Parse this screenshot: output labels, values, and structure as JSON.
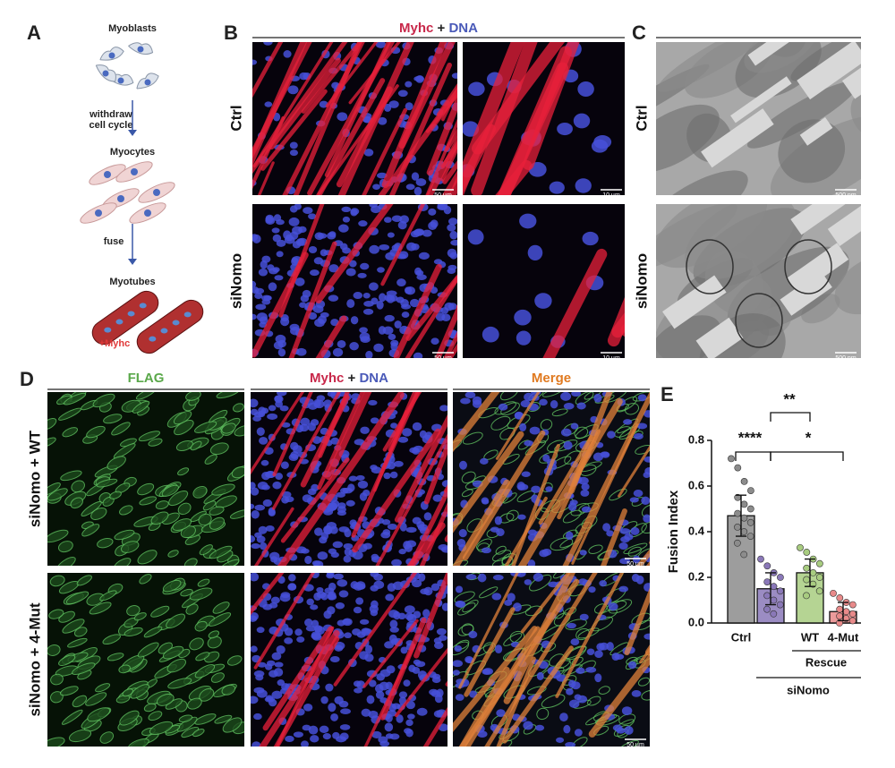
{
  "panels": {
    "A": {
      "label": "A",
      "steps": [
        "Myoblasts",
        [
          "withdraw",
          "cell cycle"
        ],
        "Myocytes",
        "fuse",
        "Myotubes"
      ],
      "marker": "+Myhc"
    },
    "B": {
      "label": "B",
      "header": [
        "Myhc",
        "+",
        "DNA"
      ],
      "rows": [
        "Ctrl",
        "siNomo"
      ],
      "scale_bars": [
        "50 µm",
        "10 µm",
        "50 µm",
        "10 µm"
      ]
    },
    "C": {
      "label": "C",
      "rows": [
        "Ctrl",
        "siNomo"
      ],
      "scale_bars": [
        "500 nm",
        "500 nm"
      ]
    },
    "D": {
      "label": "D",
      "columns": [
        [
          "FLAG"
        ],
        [
          "Myhc",
          "+",
          "DNA"
        ],
        [
          "Merge"
        ]
      ],
      "rows": [
        "siNomo + WT",
        "siNomo + 4-Mut"
      ],
      "scale_bars": [
        "50 µm",
        "50 µm"
      ]
    },
    "E": {
      "label": "E"
    }
  },
  "chart_data": {
    "type": "bar",
    "y_label": "Fusion Index",
    "categories": [
      "Ctrl",
      null,
      "WT",
      "4-Mut"
    ],
    "values": [
      0.47,
      0.15,
      0.22,
      0.05
    ],
    "errors": [
      0.09,
      0.07,
      0.06,
      0.04
    ],
    "colors": [
      "#8c8c8c",
      "#8a78b8",
      "#a8cc80",
      "#e88a8a"
    ],
    "points": [
      [
        0.72,
        0.68,
        0.62,
        0.58,
        0.55,
        0.52,
        0.5,
        0.48,
        0.46,
        0.44,
        0.42,
        0.4,
        0.38,
        0.35,
        0.3
      ],
      [
        0.28,
        0.25,
        0.22,
        0.2,
        0.18,
        0.16,
        0.14,
        0.12,
        0.1,
        0.08,
        0.06,
        0.04
      ],
      [
        0.33,
        0.31,
        0.28,
        0.26,
        0.24,
        0.22,
        0.2,
        0.19,
        0.17,
        0.14,
        0.12
      ],
      [
        0.13,
        0.11,
        0.09,
        0.08,
        0.06,
        0.05,
        0.04,
        0.03,
        0.02,
        0.01,
        0.0
      ]
    ],
    "groups": [
      "Rescue",
      "siNomo"
    ],
    "significance": [
      "****",
      "**",
      "*"
    ],
    "ylim": [
      0,
      0.8
    ],
    "yticks": [
      {
        "value": 0,
        "label": "0.0"
      },
      0.2,
      0.4,
      0.6,
      0.8
    ]
  }
}
